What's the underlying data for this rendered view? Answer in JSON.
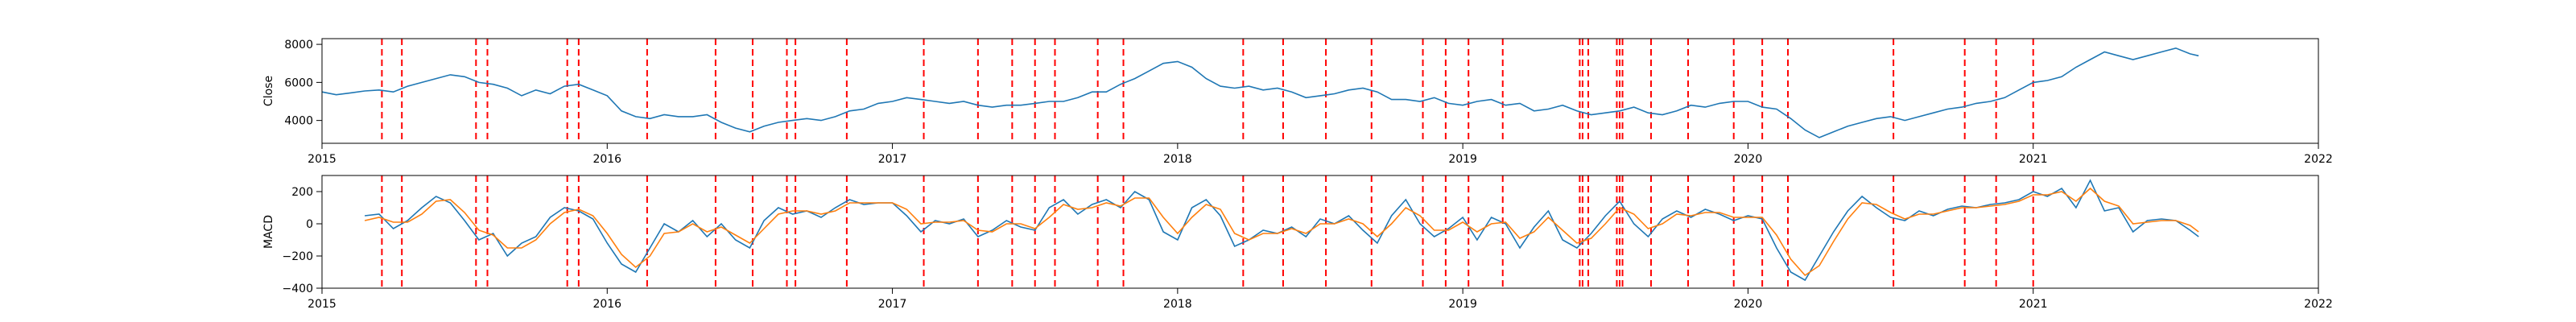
{
  "chart_data": [
    {
      "type": "line",
      "ylabel": "Close",
      "xlim": [
        2015.0,
        2022.0
      ],
      "ylim": [
        2800,
        8300
      ],
      "x_ticks": [
        2015,
        2016,
        2017,
        2018,
        2019,
        2020,
        2021,
        2022
      ],
      "x_tick_labels": [
        "2015",
        "2016",
        "2017",
        "2018",
        "2019",
        "2020",
        "2021",
        "2022"
      ],
      "y_ticks": [
        4000,
        6000,
        8000
      ],
      "y_tick_labels": [
        "4000",
        "6000",
        "8000"
      ],
      "grid": false,
      "series": [
        {
          "color": "#1f77b4",
          "x": [
            2015.0,
            2015.05,
            2015.1,
            2015.15,
            2015.2,
            2015.25,
            2015.3,
            2015.35,
            2015.4,
            2015.45,
            2015.5,
            2015.55,
            2015.6,
            2015.65,
            2015.7,
            2015.75,
            2015.8,
            2015.85,
            2015.9,
            2015.95,
            2016.0,
            2016.05,
            2016.1,
            2016.15,
            2016.2,
            2016.25,
            2016.3,
            2016.35,
            2016.4,
            2016.45,
            2016.5,
            2016.55,
            2016.6,
            2016.65,
            2016.7,
            2016.75,
            2016.8,
            2016.85,
            2016.9,
            2016.95,
            2017.0,
            2017.05,
            2017.1,
            2017.15,
            2017.2,
            2017.25,
            2017.3,
            2017.35,
            2017.4,
            2017.45,
            2017.5,
            2017.55,
            2017.6,
            2017.65,
            2017.7,
            2017.75,
            2017.8,
            2017.85,
            2017.9,
            2017.95,
            2018.0,
            2018.05,
            2018.1,
            2018.15,
            2018.2,
            2018.25,
            2018.3,
            2018.35,
            2018.4,
            2018.45,
            2018.5,
            2018.55,
            2018.6,
            2018.65,
            2018.7,
            2018.75,
            2018.8,
            2018.85,
            2018.9,
            2018.95,
            2019.0,
            2019.05,
            2019.1,
            2019.15,
            2019.2,
            2019.25,
            2019.3,
            2019.35,
            2019.4,
            2019.45,
            2019.5,
            2019.55,
            2019.6,
            2019.65,
            2019.7,
            2019.75,
            2019.8,
            2019.85,
            2019.9,
            2019.95,
            2020.0,
            2020.05,
            2020.1,
            2020.15,
            2020.2,
            2020.25,
            2020.3,
            2020.35,
            2020.4,
            2020.45,
            2020.5,
            2020.55,
            2020.6,
            2020.65,
            2020.7,
            2020.75,
            2020.8,
            2020.85,
            2020.9,
            2020.95,
            2021.0,
            2021.05,
            2021.1,
            2021.15,
            2021.2,
            2021.25,
            2021.3,
            2021.35,
            2021.4,
            2021.45,
            2021.5,
            2021.55,
            2021.58
          ],
          "y": [
            5500,
            5350,
            5450,
            5550,
            5600,
            5500,
            5800,
            6000,
            6200,
            6400,
            6300,
            6000,
            5900,
            5700,
            5300,
            5600,
            5400,
            5800,
            5900,
            5600,
            5300,
            4500,
            4200,
            4100,
            4300,
            4200,
            4200,
            4300,
            3900,
            3600,
            3400,
            3700,
            3900,
            4000,
            4100,
            4000,
            4200,
            4500,
            4600,
            4900,
            5000,
            5200,
            5100,
            5000,
            4900,
            5000,
            4800,
            4700,
            4800,
            4800,
            4900,
            5000,
            5000,
            5200,
            5500,
            5500,
            5900,
            6200,
            6600,
            7000,
            7100,
            6800,
            6200,
            5800,
            5700,
            5800,
            5600,
            5700,
            5500,
            5200,
            5300,
            5400,
            5600,
            5700,
            5500,
            5100,
            5100,
            5000,
            5200,
            4900,
            4800,
            5000,
            5100,
            4800,
            4900,
            4500,
            4600,
            4800,
            4500,
            4300,
            4400,
            4500,
            4700,
            4400,
            4300,
            4500,
            4800,
            4700,
            4900,
            5000,
            5000,
            4700,
            4600,
            4100,
            3500,
            3100,
            3400,
            3700,
            3900,
            4100,
            4200,
            4000,
            4200,
            4400,
            4600,
            4700,
            4900,
            5000,
            5200,
            5600,
            6000,
            6100,
            6300,
            6800,
            7200,
            7600,
            7400,
            7200,
            7400,
            7600,
            7800,
            7500,
            7400
          ]
        }
      ],
      "vlines": [
        2015.21,
        2015.28,
        2015.54,
        2015.58,
        2015.86,
        2015.9,
        2016.14,
        2016.38,
        2016.51,
        2016.63,
        2016.66,
        2016.84,
        2017.11,
        2017.3,
        2017.42,
        2017.5,
        2017.57,
        2017.72,
        2017.81,
        2018.23,
        2018.37,
        2018.52,
        2018.68,
        2018.86,
        2018.94,
        2019.02,
        2019.14,
        2019.41,
        2019.42,
        2019.44,
        2019.54,
        2019.55,
        2019.56,
        2019.66,
        2019.79,
        2019.95,
        2020.05,
        2020.14,
        2020.51,
        2020.76,
        2020.87,
        2021.0
      ]
    },
    {
      "type": "line",
      "ylabel": "MACD",
      "xlim": [
        2015.0,
        2022.0
      ],
      "ylim": [
        -400,
        300
      ],
      "x_ticks": [
        2015,
        2016,
        2017,
        2018,
        2019,
        2020,
        2021,
        2022
      ],
      "x_tick_labels": [
        "2015",
        "2016",
        "2017",
        "2018",
        "2019",
        "2020",
        "2021",
        "2022"
      ],
      "y_ticks": [
        -400,
        -200,
        0,
        200
      ],
      "y_tick_labels": [
        "−400",
        "−200",
        "0",
        "200"
      ],
      "grid": false,
      "series": [
        {
          "color": "#1f77b4",
          "x": [
            2015.15,
            2015.2,
            2015.25,
            2015.3,
            2015.35,
            2015.4,
            2015.45,
            2015.5,
            2015.55,
            2015.6,
            2015.65,
            2015.7,
            2015.75,
            2015.8,
            2015.85,
            2015.9,
            2015.95,
            2016.0,
            2016.05,
            2016.1,
            2016.15,
            2016.2,
            2016.25,
            2016.3,
            2016.35,
            2016.4,
            2016.45,
            2016.5,
            2016.55,
            2016.6,
            2016.65,
            2016.7,
            2016.75,
            2016.8,
            2016.85,
            2016.9,
            2016.95,
            2017.0,
            2017.05,
            2017.1,
            2017.15,
            2017.2,
            2017.25,
            2017.3,
            2017.35,
            2017.4,
            2017.45,
            2017.5,
            2017.55,
            2017.6,
            2017.65,
            2017.7,
            2017.75,
            2017.8,
            2017.85,
            2017.9,
            2017.95,
            2018.0,
            2018.05,
            2018.1,
            2018.15,
            2018.2,
            2018.25,
            2018.3,
            2018.35,
            2018.4,
            2018.45,
            2018.5,
            2018.55,
            2018.6,
            2018.65,
            2018.7,
            2018.75,
            2018.8,
            2018.85,
            2018.9,
            2018.95,
            2019.0,
            2019.05,
            2019.1,
            2019.15,
            2019.2,
            2019.25,
            2019.3,
            2019.35,
            2019.4,
            2019.45,
            2019.5,
            2019.55,
            2019.6,
            2019.65,
            2019.7,
            2019.75,
            2019.8,
            2019.85,
            2019.9,
            2019.95,
            2020.0,
            2020.05,
            2020.1,
            2020.15,
            2020.2,
            2020.25,
            2020.3,
            2020.35,
            2020.4,
            2020.45,
            2020.5,
            2020.55,
            2020.6,
            2020.65,
            2020.7,
            2020.75,
            2020.8,
            2020.85,
            2020.9,
            2020.95,
            2021.0,
            2021.05,
            2021.1,
            2021.15,
            2021.2,
            2021.25,
            2021.3,
            2021.35,
            2021.4,
            2021.45,
            2021.5,
            2021.55,
            2021.58
          ],
          "y": [
            50,
            60,
            -30,
            20,
            100,
            170,
            130,
            20,
            -100,
            -60,
            -200,
            -120,
            -80,
            40,
            100,
            80,
            30,
            -120,
            -250,
            -300,
            -150,
            0,
            -50,
            20,
            -80,
            0,
            -100,
            -150,
            20,
            100,
            60,
            80,
            40,
            100,
            150,
            120,
            130,
            130,
            50,
            -50,
            20,
            0,
            30,
            -80,
            -40,
            20,
            -20,
            -40,
            100,
            150,
            60,
            120,
            150,
            100,
            200,
            150,
            -50,
            -100,
            100,
            150,
            50,
            -140,
            -100,
            -40,
            -60,
            -20,
            -80,
            30,
            0,
            50,
            -40,
            -120,
            50,
            150,
            0,
            -80,
            -30,
            40,
            -100,
            40,
            0,
            -150,
            -20,
            80,
            -100,
            -150,
            -60,
            50,
            140,
            0,
            -80,
            30,
            80,
            40,
            90,
            60,
            20,
            50,
            30,
            -150,
            -300,
            -350,
            -200,
            -50,
            80,
            170,
            100,
            40,
            20,
            80,
            50,
            90,
            110,
            100,
            120,
            130,
            150,
            200,
            170,
            220,
            100,
            270,
            80,
            100,
            -50,
            20,
            30,
            20,
            -40,
            -80
          ],
          "name": ""
        },
        {
          "color": "#ff7f0e",
          "x": [
            2015.15,
            2015.2,
            2015.25,
            2015.3,
            2015.35,
            2015.4,
            2015.45,
            2015.5,
            2015.55,
            2015.6,
            2015.65,
            2015.7,
            2015.75,
            2015.8,
            2015.85,
            2015.9,
            2015.95,
            2016.0,
            2016.05,
            2016.1,
            2016.15,
            2016.2,
            2016.25,
            2016.3,
            2016.35,
            2016.4,
            2016.45,
            2016.5,
            2016.55,
            2016.6,
            2016.65,
            2016.7,
            2016.75,
            2016.8,
            2016.85,
            2016.9,
            2016.95,
            2017.0,
            2017.05,
            2017.1,
            2017.15,
            2017.2,
            2017.25,
            2017.3,
            2017.35,
            2017.4,
            2017.45,
            2017.5,
            2017.55,
            2017.6,
            2017.65,
            2017.7,
            2017.75,
            2017.8,
            2017.85,
            2017.9,
            2017.95,
            2018.0,
            2018.05,
            2018.1,
            2018.15,
            2018.2,
            2018.25,
            2018.3,
            2018.35,
            2018.4,
            2018.45,
            2018.5,
            2018.55,
            2018.6,
            2018.65,
            2018.7,
            2018.75,
            2018.8,
            2018.85,
            2018.9,
            2018.95,
            2019.0,
            2019.05,
            2019.1,
            2019.15,
            2019.2,
            2019.25,
            2019.3,
            2019.35,
            2019.4,
            2019.45,
            2019.5,
            2019.55,
            2019.6,
            2019.65,
            2019.7,
            2019.75,
            2019.8,
            2019.85,
            2019.9,
            2019.95,
            2020.0,
            2020.05,
            2020.1,
            2020.15,
            2020.2,
            2020.25,
            2020.3,
            2020.35,
            2020.4,
            2020.45,
            2020.5,
            2020.55,
            2020.6,
            2020.65,
            2020.7,
            2020.75,
            2020.8,
            2020.85,
            2020.9,
            2020.95,
            2021.0,
            2021.05,
            2021.1,
            2021.15,
            2021.2,
            2021.25,
            2021.3,
            2021.35,
            2021.4,
            2021.45,
            2021.5,
            2021.55,
            2021.58
          ],
          "y": [
            20,
            40,
            10,
            10,
            60,
            140,
            150,
            70,
            -40,
            -70,
            -150,
            -150,
            -100,
            0,
            70,
            90,
            50,
            -60,
            -190,
            -270,
            -200,
            -60,
            -50,
            0,
            -50,
            -20,
            -70,
            -120,
            -30,
            60,
            80,
            80,
            60,
            80,
            130,
            130,
            130,
            130,
            90,
            0,
            10,
            10,
            20,
            -40,
            -50,
            0,
            0,
            -30,
            40,
            120,
            90,
            100,
            130,
            110,
            160,
            160,
            40,
            -60,
            40,
            120,
            90,
            -60,
            -100,
            -60,
            -60,
            -30,
            -60,
            0,
            0,
            30,
            0,
            -80,
            0,
            100,
            50,
            -40,
            -40,
            10,
            -50,
            0,
            10,
            -90,
            -50,
            40,
            -40,
            -120,
            -90,
            0,
            100,
            60,
            -30,
            0,
            60,
            50,
            70,
            70,
            40,
            40,
            40,
            -70,
            -220,
            -320,
            -260,
            -110,
            30,
            130,
            120,
            70,
            30,
            60,
            60,
            80,
            100,
            100,
            110,
            120,
            140,
            180,
            180,
            200,
            140,
            220,
            140,
            110,
            0,
            10,
            20,
            20,
            -10,
            -50
          ],
          "name": ""
        }
      ],
      "vlines": [
        2015.21,
        2015.28,
        2015.54,
        2015.58,
        2015.86,
        2015.9,
        2016.14,
        2016.38,
        2016.51,
        2016.63,
        2016.66,
        2016.84,
        2017.11,
        2017.3,
        2017.42,
        2017.5,
        2017.57,
        2017.72,
        2017.81,
        2018.23,
        2018.37,
        2018.52,
        2018.68,
        2018.86,
        2018.94,
        2019.02,
        2019.14,
        2019.41,
        2019.42,
        2019.44,
        2019.54,
        2019.55,
        2019.56,
        2019.66,
        2019.79,
        2019.95,
        2020.05,
        2020.14,
        2020.51,
        2020.76,
        2020.87,
        2021.0
      ]
    }
  ]
}
